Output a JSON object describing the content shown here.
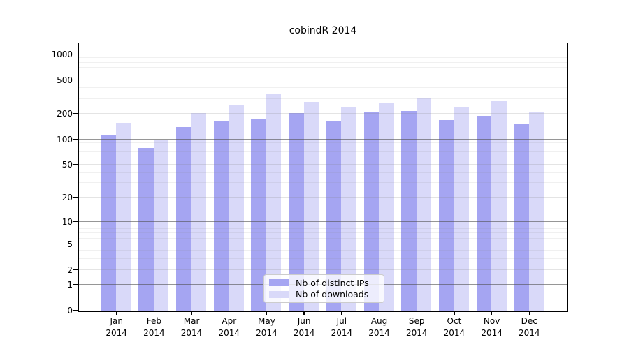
{
  "chart_data": {
    "type": "bar",
    "title": "cobindR 2014",
    "categories": [
      "Jan",
      "Feb",
      "Mar",
      "Apr",
      "May",
      "Jun",
      "Jul",
      "Aug",
      "Sep",
      "Oct",
      "Nov",
      "Dec"
    ],
    "year_label": "2014",
    "series": [
      {
        "name": "Nb of distinct IPs",
        "color": "#a5a5f2",
        "values": [
          113,
          80,
          140,
          167,
          178,
          205,
          169,
          213,
          217,
          171,
          191,
          155
        ]
      },
      {
        "name": "Nb of downloads",
        "color": "#d9d9f9",
        "values": [
          158,
          98,
          207,
          259,
          347,
          277,
          243,
          268,
          312,
          244,
          284,
          213
        ]
      }
    ],
    "yaxis": {
      "scale": "log1p",
      "ylim": [
        0,
        1345
      ],
      "ticks": [
        0,
        1,
        2,
        5,
        10,
        20,
        50,
        100,
        200,
        500,
        1000
      ],
      "grid_major": [
        1,
        10,
        100,
        1000
      ],
      "grid_light": [
        2,
        5,
        20,
        50,
        200,
        500
      ],
      "grid_minor": [
        3,
        4,
        6,
        7,
        8,
        9,
        30,
        40,
        60,
        70,
        80,
        90,
        300,
        400,
        600,
        700,
        800,
        900
      ]
    },
    "legend_position": "bottom-center",
    "grid": "on"
  },
  "colors": {
    "bar_ips": "#a5a5f2",
    "bar_downloads": "#d9d9f9",
    "grid_major": "rgba(80,80,80,0.60)",
    "grid_light": "rgba(130,130,130,0.22)",
    "grid_minor": "rgba(130,130,130,0.12)",
    "axis": "#000000",
    "legend_border": "#cccccc"
  }
}
